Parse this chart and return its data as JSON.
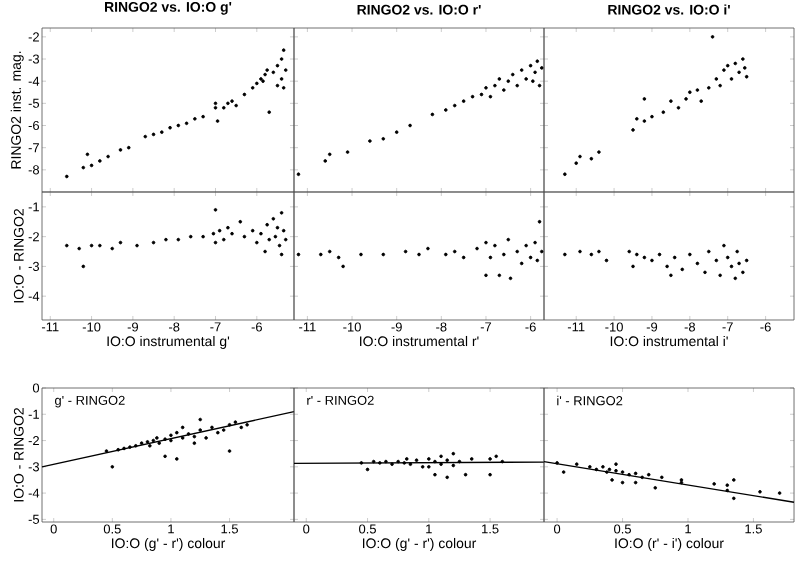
{
  "chart_data": [
    {
      "type": "scatter",
      "title": "RINGO2 vs. IO:O g'",
      "ylabel": "RINGO2 inst. mag.",
      "xlim": [
        -11.2,
        -5.1
      ],
      "ylim": [
        -9,
        -1.6
      ],
      "xticks": [
        -11,
        -10,
        -9,
        -8,
        -7,
        -6
      ],
      "yticks": [
        -8,
        -7,
        -6,
        -5,
        -4,
        -3,
        -2
      ],
      "tick_labels": "y",
      "series": [
        {
          "color": "#000000",
          "x": [
            -10.6,
            -10.2,
            -10.1,
            -10.0,
            -9.8,
            -9.6,
            -9.3,
            -9.1,
            -8.7,
            -8.5,
            -8.3,
            -8.1,
            -7.9,
            -7.7,
            -7.5,
            -7.3,
            -7.0,
            -7.0,
            -6.95,
            -6.8,
            -6.7,
            -6.6,
            -6.5,
            -6.3,
            -6.1,
            -6.0,
            -5.9,
            -5.85,
            -5.8,
            -5.75,
            -5.7,
            -5.6,
            -5.5,
            -5.5,
            -5.4,
            -5.4,
            -5.35,
            -5.35,
            -5.3
          ],
          "values": [
            -8.3,
            -7.9,
            -7.3,
            -7.8,
            -7.6,
            -7.4,
            -7.1,
            -7.0,
            -6.5,
            -6.4,
            -6.3,
            -6.1,
            -6.0,
            -5.9,
            -5.7,
            -5.6,
            -5.2,
            -5.0,
            -5.8,
            -5.2,
            -5.0,
            -4.9,
            -5.1,
            -4.6,
            -4.3,
            -4.1,
            -3.9,
            -4.0,
            -3.7,
            -3.5,
            -5.4,
            -3.6,
            -3.3,
            -4.2,
            -3.0,
            -3.9,
            -2.6,
            -4.3,
            -3.5
          ]
        }
      ]
    },
    {
      "type": "scatter",
      "title": "RINGO2 vs. IO:O r'",
      "xlim": [
        -11.3,
        -5.7
      ],
      "ylim": [
        -9,
        -1.6
      ],
      "xticks": [
        -11,
        -10,
        -9,
        -8,
        -7,
        -6
      ],
      "yticks": [
        -8,
        -7,
        -6,
        -5,
        -4,
        -3,
        -2
      ],
      "tick_labels": false,
      "series": [
        {
          "color": "#000000",
          "x": [
            -11.2,
            -10.6,
            -10.5,
            -10.1,
            -9.6,
            -9.3,
            -9.0,
            -8.7,
            -8.2,
            -7.9,
            -7.7,
            -7.5,
            -7.3,
            -7.1,
            -7.0,
            -6.9,
            -6.8,
            -6.7,
            -6.6,
            -6.5,
            -6.4,
            -6.3,
            -6.2,
            -6.1,
            -6.0,
            -5.95,
            -5.9,
            -5.85,
            -5.8,
            -5.75
          ],
          "values": [
            -8.2,
            -7.6,
            -7.3,
            -7.2,
            -6.7,
            -6.6,
            -6.3,
            -6.0,
            -5.5,
            -5.3,
            -5.1,
            -4.9,
            -4.7,
            -4.6,
            -4.3,
            -4.7,
            -4.2,
            -3.9,
            -4.4,
            -4.0,
            -3.7,
            -4.2,
            -3.5,
            -3.9,
            -3.3,
            -4.0,
            -3.6,
            -3.1,
            -4.2,
            -3.4
          ]
        }
      ]
    },
    {
      "type": "scatter",
      "title": "RINGO2 vs. IO:O i'",
      "xlim": [
        -11.85,
        -5.25
      ],
      "ylim": [
        -9,
        -1.6
      ],
      "xticks": [
        -11,
        -10,
        -9,
        -8,
        -7,
        -6
      ],
      "yticks": [
        -8,
        -7,
        -6,
        -5,
        -4,
        -3,
        -2
      ],
      "tick_labels": false,
      "series": [
        {
          "color": "#000000",
          "x": [
            -11.3,
            -11.0,
            -10.9,
            -10.6,
            -10.4,
            -9.5,
            -9.4,
            -9.2,
            -9.2,
            -9.0,
            -8.7,
            -8.5,
            -8.3,
            -8.1,
            -8.0,
            -7.8,
            -7.7,
            -7.5,
            -7.4,
            -7.3,
            -7.2,
            -7.1,
            -7.0,
            -6.9,
            -6.8,
            -6.7,
            -6.6,
            -6.55,
            -6.5
          ],
          "values": [
            -8.2,
            -7.7,
            -7.4,
            -7.5,
            -7.2,
            -6.2,
            -5.7,
            -5.8,
            -4.8,
            -5.6,
            -5.4,
            -4.9,
            -5.2,
            -4.8,
            -4.5,
            -4.4,
            -4.9,
            -4.3,
            -2.0,
            -3.9,
            -4.2,
            -3.5,
            -3.3,
            -3.9,
            -3.2,
            -3.6,
            -3.0,
            -3.4,
            -3.8
          ]
        }
      ]
    },
    {
      "type": "scatter",
      "xlabel": "IO:O instrumental g'",
      "ylabel": "IO:O - RINGO2",
      "xlim": [
        -11.2,
        -5.1
      ],
      "ylim": [
        -4.8,
        -0.5
      ],
      "xticks": [
        -11,
        -10,
        -9,
        -8,
        -7,
        -6
      ],
      "yticks": [
        -4,
        -3,
        -2,
        -1
      ],
      "series": [
        {
          "color": "#000000",
          "x": [
            -10.6,
            -10.3,
            -10.2,
            -10.0,
            -9.8,
            -9.5,
            -9.3,
            -8.9,
            -8.5,
            -8.2,
            -7.9,
            -7.6,
            -7.3,
            -7.05,
            -7.0,
            -7.0,
            -6.9,
            -6.8,
            -6.7,
            -6.6,
            -6.4,
            -6.3,
            -6.1,
            -6.0,
            -5.9,
            -5.8,
            -5.75,
            -5.7,
            -5.6,
            -5.55,
            -5.5,
            -5.45,
            -5.4,
            -5.4,
            -5.35,
            -5.3
          ],
          "values": [
            -2.3,
            -2.4,
            -3.0,
            -2.3,
            -2.3,
            -2.4,
            -2.2,
            -2.3,
            -2.2,
            -2.1,
            -2.1,
            -2.0,
            -2.0,
            -1.9,
            -1.1,
            -2.2,
            -1.8,
            -2.1,
            -1.7,
            -1.9,
            -1.5,
            -2.0,
            -1.8,
            -2.2,
            -1.9,
            -2.5,
            -1.6,
            -2.1,
            -1.4,
            -2.0,
            -1.7,
            -2.3,
            -1.2,
            -2.6,
            -1.8,
            -2.1
          ]
        }
      ]
    },
    {
      "type": "scatter",
      "xlabel": "IO:O instrumental r'",
      "xlim": [
        -11.3,
        -5.7
      ],
      "ylim": [
        -4.8,
        -0.5
      ],
      "xticks": [
        -11,
        -10,
        -9,
        -8,
        -7,
        -6
      ],
      "yticks": [
        -4,
        -3,
        -2,
        -1
      ],
      "tick_labels": "x",
      "series": [
        {
          "color": "#000000",
          "x": [
            -11.2,
            -10.7,
            -10.5,
            -10.3,
            -10.2,
            -9.8,
            -9.3,
            -8.8,
            -8.5,
            -8.3,
            -7.9,
            -7.7,
            -7.5,
            -7.2,
            -7.0,
            -7.0,
            -6.9,
            -6.8,
            -6.7,
            -6.6,
            -6.5,
            -6.45,
            -6.3,
            -6.2,
            -6.1,
            -6.0,
            -5.9,
            -5.85,
            -5.8,
            -5.75
          ],
          "values": [
            -2.6,
            -2.6,
            -2.5,
            -2.7,
            -3.0,
            -2.6,
            -2.6,
            -2.5,
            -2.6,
            -2.4,
            -2.6,
            -2.5,
            -2.7,
            -2.4,
            -2.2,
            -3.3,
            -2.7,
            -2.3,
            -3.3,
            -2.6,
            -2.1,
            -3.4,
            -2.5,
            -2.9,
            -2.3,
            -2.7,
            -2.2,
            -2.8,
            -1.5,
            -2.5
          ]
        }
      ]
    },
    {
      "type": "scatter",
      "xlabel": "IO:O instrumental i'",
      "xlim": [
        -11.85,
        -5.25
      ],
      "ylim": [
        -4.8,
        -0.5
      ],
      "xticks": [
        -11,
        -10,
        -9,
        -8,
        -7,
        -6
      ],
      "yticks": [
        -4,
        -3,
        -2,
        -1
      ],
      "tick_labels": "x",
      "series": [
        {
          "color": "#000000",
          "x": [
            -11.3,
            -10.9,
            -10.6,
            -10.4,
            -10.2,
            -9.6,
            -9.5,
            -9.4,
            -9.2,
            -9.0,
            -8.8,
            -8.6,
            -8.5,
            -8.4,
            -8.2,
            -8.0,
            -7.8,
            -7.6,
            -7.5,
            -7.3,
            -7.2,
            -7.1,
            -7.0,
            -6.9,
            -6.8,
            -6.75,
            -6.7,
            -6.6,
            -6.5
          ],
          "values": [
            -2.6,
            -2.5,
            -2.6,
            -2.5,
            -2.8,
            -2.5,
            -3.0,
            -2.6,
            -2.7,
            -2.8,
            -2.6,
            -3.0,
            -3.3,
            -2.7,
            -3.1,
            -2.6,
            -2.9,
            -3.2,
            -2.5,
            -2.8,
            -3.3,
            -2.3,
            -2.7,
            -3.0,
            -3.4,
            -2.5,
            -2.9,
            -3.2,
            -2.8
          ]
        }
      ]
    },
    {
      "type": "scatter",
      "xlabel": "IO:O (g' - r') colour",
      "ylabel": "IO:O - RINGO2",
      "annotations": [
        "g' - RINGO2"
      ],
      "xlim": [
        -0.1,
        2.05
      ],
      "ylim": [
        -5.1,
        0
      ],
      "xticks": [
        0,
        0.5,
        1,
        1.5
      ],
      "yticks": [
        -5,
        -4,
        -3,
        -2,
        -1,
        0
      ],
      "series": [
        {
          "color": "#000000",
          "x": [
            0.45,
            0.5,
            0.55,
            0.6,
            0.65,
            0.7,
            0.75,
            0.8,
            0.82,
            0.85,
            0.88,
            0.9,
            0.95,
            0.95,
            1.0,
            1.0,
            1.05,
            1.05,
            1.1,
            1.1,
            1.15,
            1.2,
            1.2,
            1.25,
            1.25,
            1.3,
            1.35,
            1.4,
            1.45,
            1.5,
            1.5,
            1.55,
            1.6,
            1.65
          ],
          "values": [
            -2.4,
            -3.0,
            -2.35,
            -2.3,
            -2.25,
            -2.2,
            -2.1,
            -2.05,
            -2.2,
            -2.0,
            -1.9,
            -2.1,
            -1.95,
            -2.6,
            -1.8,
            -2.0,
            -1.7,
            -2.7,
            -1.9,
            -1.5,
            -1.75,
            -1.85,
            -2.1,
            -1.6,
            -1.2,
            -1.9,
            -1.5,
            -1.7,
            -1.6,
            -1.4,
            -2.4,
            -1.3,
            -1.5,
            -1.4
          ]
        },
        {
          "type": "line",
          "line_style": "solid",
          "marker": "none",
          "color": "#000000",
          "x": [
            -0.1,
            2.05
          ],
          "values": [
            -3.0,
            -0.9
          ]
        }
      ]
    },
    {
      "type": "scatter",
      "xlabel": "IO:O (g' - r') colour",
      "annotations": [
        "r' - RINGO2"
      ],
      "xlim": [
        -0.1,
        1.94
      ],
      "ylim": [
        -5.1,
        0
      ],
      "xticks": [
        0,
        0.5,
        1,
        1.5
      ],
      "yticks": [
        -5,
        -4,
        -3,
        -2,
        -1,
        0
      ],
      "tick_labels": "x",
      "series": [
        {
          "color": "#000000",
          "x": [
            0.45,
            0.5,
            0.55,
            0.6,
            0.65,
            0.7,
            0.75,
            0.8,
            0.82,
            0.85,
            0.9,
            0.95,
            1.0,
            1.0,
            1.05,
            1.05,
            1.1,
            1.1,
            1.15,
            1.15,
            1.2,
            1.2,
            1.25,
            1.3,
            1.35,
            1.5,
            1.5,
            1.55,
            1.6
          ],
          "values": [
            -2.85,
            -3.1,
            -2.8,
            -2.85,
            -2.8,
            -2.9,
            -2.8,
            -2.85,
            -2.7,
            -2.9,
            -2.75,
            -3.0,
            -2.7,
            -3.0,
            -2.8,
            -3.3,
            -2.6,
            -2.9,
            -2.75,
            -3.4,
            -2.5,
            -2.95,
            -2.8,
            -3.3,
            -2.7,
            -2.7,
            -3.3,
            -2.6,
            -2.8
          ]
        },
        {
          "type": "line",
          "line_style": "solid",
          "marker": "none",
          "color": "#000000",
          "x": [
            -0.1,
            1.94
          ],
          "values": [
            -2.87,
            -2.82
          ]
        }
      ]
    },
    {
      "type": "scatter",
      "xlabel": "IO:O (r' - i') colour",
      "annotations": [
        "i' - RINGO2"
      ],
      "xlim": [
        -0.1,
        1.81
      ],
      "ylim": [
        -5.1,
        0
      ],
      "xticks": [
        0,
        0.5,
        1,
        1.5
      ],
      "yticks": [
        -5,
        -4,
        -3,
        -2,
        -1,
        0
      ],
      "tick_labels": "x",
      "series": [
        {
          "color": "#000000",
          "x": [
            0.0,
            0.05,
            0.15,
            0.25,
            0.3,
            0.35,
            0.38,
            0.4,
            0.42,
            0.45,
            0.45,
            0.5,
            0.5,
            0.55,
            0.6,
            0.6,
            0.65,
            0.7,
            0.75,
            0.8,
            0.95,
            0.95,
            1.2,
            1.3,
            1.3,
            1.35,
            1.35,
            1.55,
            1.7
          ],
          "values": [
            -2.85,
            -3.2,
            -2.9,
            -3.0,
            -3.1,
            -3.0,
            -3.2,
            -3.1,
            -3.5,
            -3.15,
            -2.9,
            -3.2,
            -3.6,
            -3.3,
            -3.25,
            -3.6,
            -3.4,
            -3.3,
            -3.8,
            -3.4,
            -3.5,
            -3.6,
            -3.65,
            -3.7,
            -3.9,
            -4.2,
            -3.5,
            -3.95,
            -4.0
          ]
        },
        {
          "type": "line",
          "line_style": "solid",
          "marker": "none",
          "color": "#000000",
          "x": [
            -0.1,
            1.81
          ],
          "values": [
            -2.8,
            -4.35
          ]
        }
      ]
    }
  ]
}
